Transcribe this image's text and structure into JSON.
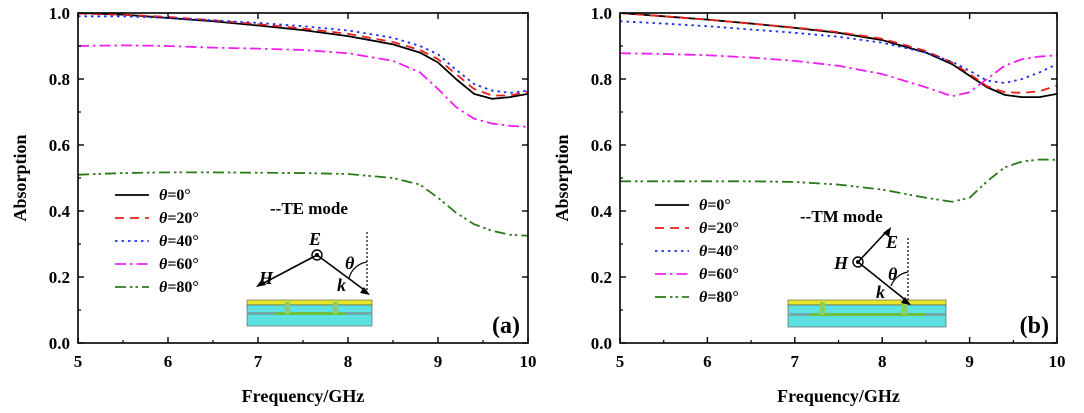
{
  "chart_data": [
    {
      "type": "line",
      "panel_label": "(a)",
      "mode_label": "--TE mode",
      "xlabel": "Frequency/GHz",
      "ylabel": "Absorption",
      "xlim": [
        5,
        10
      ],
      "ylim": [
        0.0,
        1.0
      ],
      "xticks": [
        "5",
        "6",
        "7",
        "8",
        "9",
        "10"
      ],
      "yticks": [
        "0.0",
        "0.2",
        "0.4",
        "0.6",
        "0.8",
        "1.0"
      ],
      "x": [
        5.0,
        5.5,
        6.0,
        6.5,
        7.0,
        7.5,
        8.0,
        8.5,
        8.8,
        9.0,
        9.2,
        9.4,
        9.6,
        9.8,
        10.0
      ],
      "series": [
        {
          "name": "θ=0°",
          "color": "#000000",
          "dash": "solid",
          "values": [
            1.0,
            0.995,
            0.985,
            0.975,
            0.962,
            0.948,
            0.93,
            0.905,
            0.88,
            0.85,
            0.8,
            0.755,
            0.74,
            0.745,
            0.755
          ]
        },
        {
          "name": "θ=20°",
          "color": "#e8201c",
          "dash": "dash",
          "values": [
            0.998,
            0.995,
            0.988,
            0.978,
            0.966,
            0.953,
            0.937,
            0.912,
            0.888,
            0.86,
            0.815,
            0.77,
            0.75,
            0.75,
            0.762
          ]
        },
        {
          "name": "θ=40°",
          "color": "#1e2ee6",
          "dash": "dot",
          "values": [
            0.99,
            0.99,
            0.985,
            0.978,
            0.97,
            0.96,
            0.947,
            0.925,
            0.9,
            0.875,
            0.828,
            0.785,
            0.765,
            0.758,
            0.765
          ]
        },
        {
          "name": "θ=60°",
          "color": "#f01ff0",
          "dash": "dashdot",
          "values": [
            0.9,
            0.902,
            0.9,
            0.895,
            0.892,
            0.888,
            0.878,
            0.855,
            0.82,
            0.77,
            0.715,
            0.68,
            0.665,
            0.658,
            0.655
          ]
        },
        {
          "name": "θ=80°",
          "color": "#2a7a1a",
          "dash": "dashdotdot",
          "values": [
            0.51,
            0.515,
            0.517,
            0.517,
            0.516,
            0.515,
            0.512,
            0.5,
            0.48,
            0.44,
            0.395,
            0.36,
            0.34,
            0.328,
            0.325
          ]
        }
      ],
      "inset": {
        "E": "E",
        "H": "H",
        "k": "k",
        "theta": "θ"
      }
    },
    {
      "type": "line",
      "panel_label": "(b)",
      "mode_label": "--TM mode",
      "xlabel": "Frequency/GHz",
      "ylabel": "Absorption",
      "xlim": [
        5,
        10
      ],
      "ylim": [
        0.0,
        1.0
      ],
      "xticks": [
        "5",
        "6",
        "7",
        "8",
        "9",
        "10"
      ],
      "yticks": [
        "0.0",
        "0.2",
        "0.4",
        "0.6",
        "0.8",
        "1.0"
      ],
      "x": [
        5.0,
        5.5,
        6.0,
        6.5,
        7.0,
        7.5,
        8.0,
        8.5,
        8.8,
        9.0,
        9.2,
        9.4,
        9.6,
        9.8,
        10.0
      ],
      "series": [
        {
          "name": "θ=0°",
          "color": "#000000",
          "dash": "solid",
          "values": [
            1.0,
            0.99,
            0.98,
            0.968,
            0.955,
            0.94,
            0.918,
            0.88,
            0.845,
            0.81,
            0.775,
            0.752,
            0.745,
            0.745,
            0.755
          ]
        },
        {
          "name": "θ=20°",
          "color": "#e8201c",
          "dash": "dash",
          "values": [
            1.0,
            0.99,
            0.98,
            0.968,
            0.956,
            0.942,
            0.922,
            0.885,
            0.85,
            0.815,
            0.778,
            0.76,
            0.758,
            0.763,
            0.78
          ]
        },
        {
          "name": "θ=40°",
          "color": "#1e2ee6",
          "dash": "dot",
          "values": [
            0.975,
            0.968,
            0.96,
            0.95,
            0.94,
            0.928,
            0.91,
            0.88,
            0.852,
            0.825,
            0.795,
            0.788,
            0.8,
            0.82,
            0.845
          ]
        },
        {
          "name": "θ=60°",
          "color": "#f01ff0",
          "dash": "dashdot",
          "values": [
            0.878,
            0.876,
            0.872,
            0.865,
            0.855,
            0.84,
            0.815,
            0.775,
            0.748,
            0.76,
            0.8,
            0.84,
            0.86,
            0.868,
            0.872
          ]
        },
        {
          "name": "θ=80°",
          "color": "#2a7a1a",
          "dash": "dashdotdot",
          "values": [
            0.49,
            0.49,
            0.49,
            0.49,
            0.488,
            0.48,
            0.465,
            0.44,
            0.428,
            0.44,
            0.49,
            0.532,
            0.55,
            0.556,
            0.555
          ]
        }
      ],
      "inset": {
        "E": "E",
        "H": "H",
        "k": "k",
        "theta": "θ"
      }
    }
  ]
}
